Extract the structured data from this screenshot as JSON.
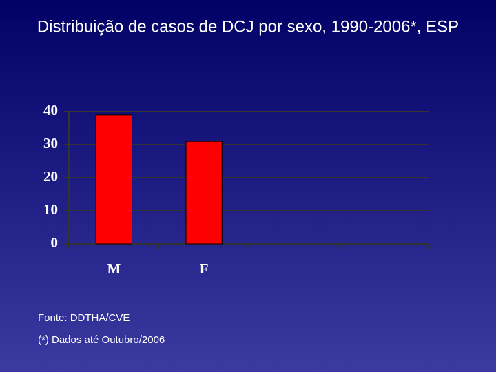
{
  "chart_data": {
    "type": "bar",
    "title": "Distribuição de casos de DCJ por sexo, 1990-2006*, ESP",
    "categories": [
      "M",
      "F",
      null,
      null
    ],
    "values": [
      39,
      31,
      null,
      null
    ],
    "color": "#ff0000",
    "ylim": [
      0,
      40
    ],
    "yticks": [
      0,
      10,
      20,
      30,
      40
    ],
    "grid": true,
    "annotations": [
      "Fonte: DDTHA/CVE",
      "(*) Dados até Outubro/2006"
    ]
  }
}
